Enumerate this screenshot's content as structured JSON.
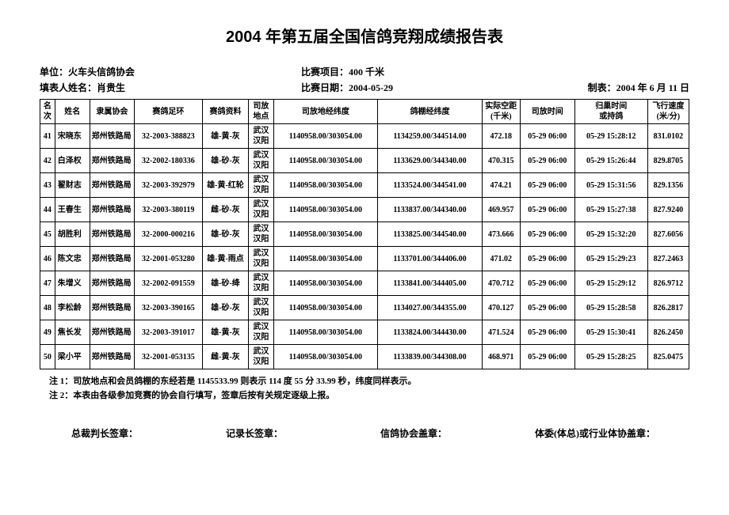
{
  "title": "2004 年第五届全国信鸽竞翔成绩报告表",
  "meta": {
    "org_label": "单位：",
    "org": "火车头信鸽协会",
    "event_label": "比赛项目：",
    "event": "400 千米",
    "filler_label": "填表人姓名：",
    "filler": "肖贵生",
    "race_date_label": "比赛日期：",
    "race_date": "2004-05-29",
    "made_label": "制表：",
    "made": "2004 年 6 月 11 日"
  },
  "columns": {
    "rank": "名次",
    "name": "姓名",
    "assoc": "隶属协会",
    "ring": "赛鸽足环",
    "info": "赛鸽资料",
    "loc": "司放地点",
    "release_coord": "司放地经纬度",
    "loft_coord": "鸽棚经纬度",
    "dist": "实际空距\n(千米)",
    "release_time": "司放时间",
    "return_time": "归巢时间\n或持鸽",
    "speed": "飞行速度\n(米/分)"
  },
  "rows": [
    {
      "rank": "41",
      "name": "宋晓东",
      "assoc": "郑州铁路局",
      "ring": "32-2003-388823",
      "info": "雄-黄-灰",
      "loc": "武汉汉阳",
      "release": "1140958.00/303054.00",
      "loft": "1134259.00/344514.00",
      "dist": "472.18",
      "rtime": "05-29 06:00",
      "return": "05-29 15:28:12",
      "speed": "831.0102"
    },
    {
      "rank": "42",
      "name": "白泽权",
      "assoc": "郑州铁路局",
      "ring": "32-2002-180336",
      "info": "雄-砂-灰",
      "loc": "武汉汉阳",
      "release": "1140958.00/303054.00",
      "loft": "1133629.00/344340.00",
      "dist": "470.315",
      "rtime": "05-29 06:00",
      "return": "05-29 15:26:44",
      "speed": "829.8705"
    },
    {
      "rank": "43",
      "name": "翟财志",
      "assoc": "郑州铁路局",
      "ring": "32-2003-392979",
      "info": "雄-黄-红轮",
      "loc": "武汉汉阳",
      "release": "1140958.00/303054.00",
      "loft": "1133524.00/344541.00",
      "dist": "474.21",
      "rtime": "05-29 06:00",
      "return": "05-29 15:31:56",
      "speed": "829.1356"
    },
    {
      "rank": "44",
      "name": "王春生",
      "assoc": "郑州铁路局",
      "ring": "32-2003-380119",
      "info": "雌-砂-灰",
      "loc": "武汉汉阳",
      "release": "1140958.00/303054.00",
      "loft": "1133837.00/344340.00",
      "dist": "469.957",
      "rtime": "05-29 06:00",
      "return": "05-29 15:27:38",
      "speed": "827.9240"
    },
    {
      "rank": "45",
      "name": "胡胜利",
      "assoc": "郑州铁路局",
      "ring": "32-2000-000216",
      "info": "雄-砂-灰",
      "loc": "武汉汉阳",
      "release": "1140958.00/303054.00",
      "loft": "1133825.00/344540.00",
      "dist": "473.666",
      "rtime": "05-29 06:00",
      "return": "05-29 15:32:20",
      "speed": "827.6056"
    },
    {
      "rank": "46",
      "name": "陈文忠",
      "assoc": "郑州铁路局",
      "ring": "32-2001-053280",
      "info": "雄-黄-雨点",
      "loc": "武汉汉阳",
      "release": "1140958.00/303054.00",
      "loft": "1133701.00/344406.00",
      "dist": "471.02",
      "rtime": "05-29 06:00",
      "return": "05-29 15:29:23",
      "speed": "827.2463"
    },
    {
      "rank": "47",
      "name": "朱增义",
      "assoc": "郑州铁路局",
      "ring": "32-2002-091559",
      "info": "雄-砂-绛",
      "loc": "武汉汉阳",
      "release": "1140958.00/303054.00",
      "loft": "1133841.00/344405.00",
      "dist": "470.712",
      "rtime": "05-29 06:00",
      "return": "05-29 15:29:12",
      "speed": "826.9712"
    },
    {
      "rank": "48",
      "name": "李松龄",
      "assoc": "郑州铁路局",
      "ring": "32-2003-390165",
      "info": "雄-砂-灰",
      "loc": "武汉汉阳",
      "release": "1140958.00/303054.00",
      "loft": "1134027.00/344355.00",
      "dist": "470.127",
      "rtime": "05-29 06:00",
      "return": "05-29 15:28:58",
      "speed": "826.2817"
    },
    {
      "rank": "49",
      "name": "焦长发",
      "assoc": "郑州铁路局",
      "ring": "32-2003-391017",
      "info": "雄-黄-灰",
      "loc": "武汉汉阳",
      "release": "1140958.00/303054.00",
      "loft": "1133824.00/344430.00",
      "dist": "471.524",
      "rtime": "05-29 06:00",
      "return": "05-29 15:30:41",
      "speed": "826.2450"
    },
    {
      "rank": "50",
      "name": "梁小平",
      "assoc": "郑州铁路局",
      "ring": "32-2001-053135",
      "info": "雌-黄-灰",
      "loc": "武汉汉阳",
      "release": "1140958.00/303054.00",
      "loft": "1133839.00/344308.00",
      "dist": "468.971",
      "rtime": "05-29 06:00",
      "return": "05-29 15:28:25",
      "speed": "825.0475"
    }
  ],
  "notes": {
    "n1": "注 1：司放地点和会员鸽棚的东经若是 1145533.99 则表示 114 度 55 分 33.99 秒，纬度同样表示。",
    "n2": "注 2：本表由各级参加竞赛的协会自行填写，签章后按有关规定逐级上报。"
  },
  "sigs": {
    "s1": "总裁判长签章：",
    "s2": "记录长签章：",
    "s3": "信鸽协会盖章：",
    "s4": "体委(体总)或行业体协盖章："
  }
}
